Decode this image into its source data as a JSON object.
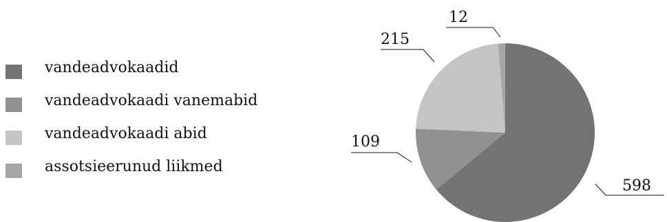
{
  "chart_data": {
    "type": "pie",
    "title": "",
    "categories": [
      "vandeadvokaadid",
      "vandeadvokaadi vanemabid",
      "vandeadvokaadi abid",
      "assotsieerunud liikmed"
    ],
    "values": [
      598,
      109,
      215,
      12
    ],
    "colors": [
      "#737373",
      "#919191",
      "#c4c4c4",
      "#a6a6a6"
    ],
    "data_labels": [
      "598",
      "109",
      "215",
      "12"
    ],
    "legend_position": "left"
  }
}
